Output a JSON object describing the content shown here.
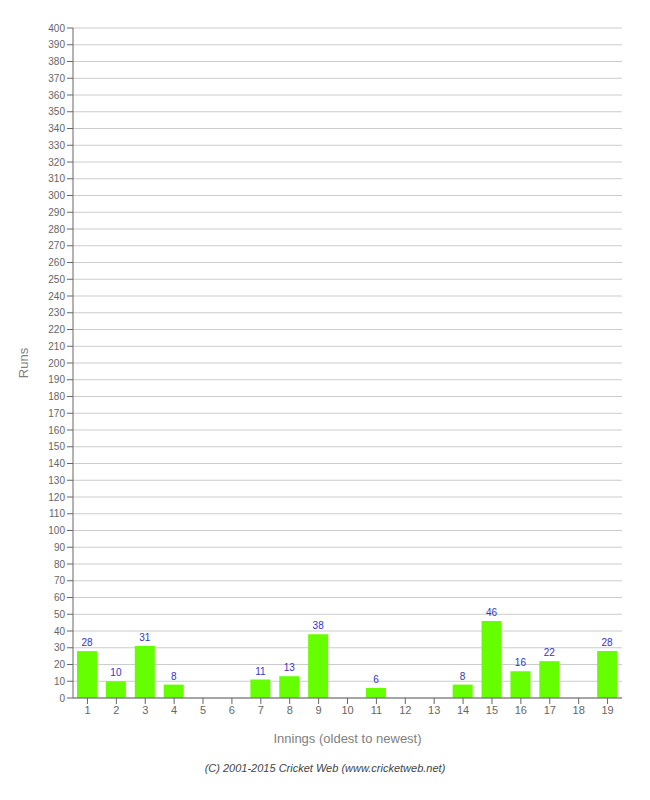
{
  "chart_data": {
    "type": "bar",
    "categories": [
      "1",
      "2",
      "3",
      "4",
      "5",
      "6",
      "7",
      "8",
      "9",
      "10",
      "11",
      "12",
      "13",
      "14",
      "15",
      "16",
      "17",
      "18",
      "19"
    ],
    "values": [
      28,
      10,
      31,
      8,
      0,
      0,
      11,
      13,
      38,
      0,
      6,
      0,
      0,
      8,
      46,
      16,
      22,
      0,
      28
    ],
    "color": "#66ff00",
    "x_label": "Innings (oldest to newest)",
    "y_label": "Runs",
    "ylim": [
      0,
      400
    ],
    "yticks": [
      0,
      10,
      20,
      30,
      40,
      50,
      60,
      70,
      80,
      90,
      100,
      110,
      120,
      130,
      140,
      150,
      160,
      170,
      180,
      190,
      200,
      210,
      220,
      230,
      240,
      250,
      260,
      270,
      280,
      290,
      300,
      310,
      320,
      330,
      340,
      350,
      360,
      370,
      380,
      390,
      400
    ],
    "grid": true,
    "data_labels": true,
    "annotations": [
      "(C) 2001-2015 Cricket Web (www.cricketweb.net)"
    ]
  }
}
